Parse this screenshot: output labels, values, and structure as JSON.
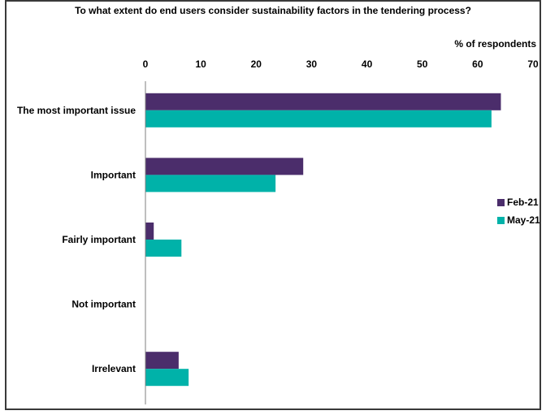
{
  "chart_data": {
    "type": "bar",
    "orientation": "horizontal",
    "title": "To what extent do end users consider sustainability factors in the tendering process?",
    "xlabel": "% of respondents",
    "xlim": [
      0,
      70
    ],
    "xticks": [
      "0",
      "10",
      "20",
      "30",
      "40",
      "50",
      "60",
      "70"
    ],
    "axis_position": "top",
    "grid": false,
    "legend_position": "right",
    "categories": [
      "The most important issue",
      "Important",
      "Fairly important",
      "Not important",
      "Irrelevant"
    ],
    "series": [
      {
        "name": "Feb-21",
        "color": "#4b2d6b",
        "values": [
          64.2,
          28.5,
          1.5,
          0,
          6
        ]
      },
      {
        "name": "May-21",
        "color": "#00b2a9",
        "values": [
          62.5,
          23.5,
          6.5,
          0,
          7.8
        ]
      }
    ]
  }
}
